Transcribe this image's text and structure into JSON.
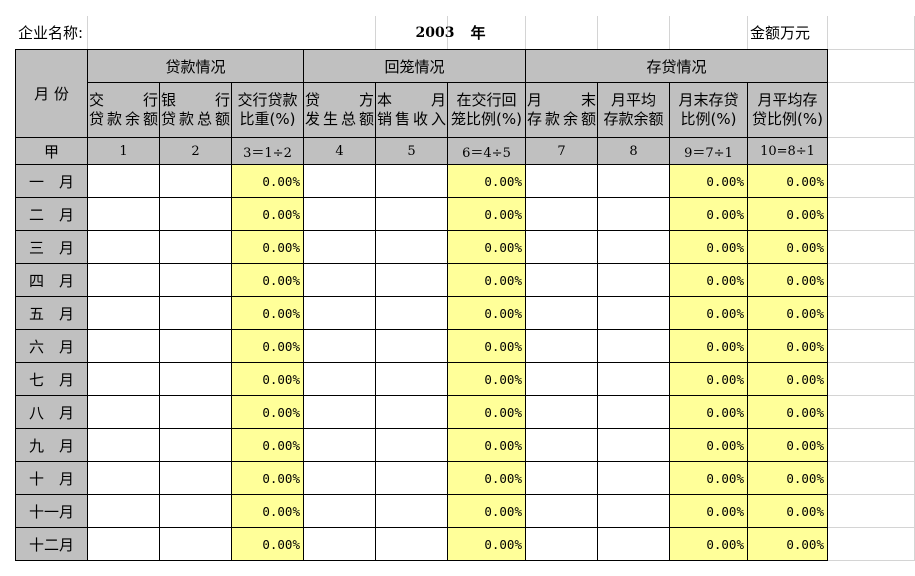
{
  "header": {
    "company_label": "企业名称:",
    "year": "2003",
    "year_suffix": "年",
    "unit": "金额万元"
  },
  "table": {
    "month_header": "月 份",
    "groups": [
      "贷款情况",
      "回笼情况",
      "存贷情况"
    ],
    "columns": [
      [
        "交　行",
        "贷款余额"
      ],
      [
        "银　行",
        "贷款总额"
      ],
      [
        "交行贷款",
        "比重(%)"
      ],
      [
        "贷　方",
        "发生总额"
      ],
      [
        "本　月",
        "销售收入"
      ],
      [
        "在交行回",
        "笼比例(%)"
      ],
      [
        "月　末",
        "存款余额"
      ],
      [
        "月平均",
        "存款余额"
      ],
      [
        "月末存贷",
        "比例(%)"
      ],
      [
        "月平均存",
        "贷比例(%)"
      ]
    ],
    "index_label": "甲",
    "indices": [
      "1",
      "2",
      "3＝1÷2",
      "4",
      "5",
      "6＝4÷5",
      "7",
      "8",
      "9＝7÷1",
      "10=8÷1"
    ],
    "months": [
      "一　月",
      "二　月",
      "三　月",
      "四　月",
      "五　月",
      "六　月",
      "七　月",
      "八　月",
      "九　月",
      "十　月",
      "十一月",
      "十二月"
    ],
    "pct_value": "0.00%"
  },
  "colors": {
    "header_fill": "#c0c0c0",
    "formula_fill": "#ffff99",
    "gridline": "#d4d4d4"
  }
}
